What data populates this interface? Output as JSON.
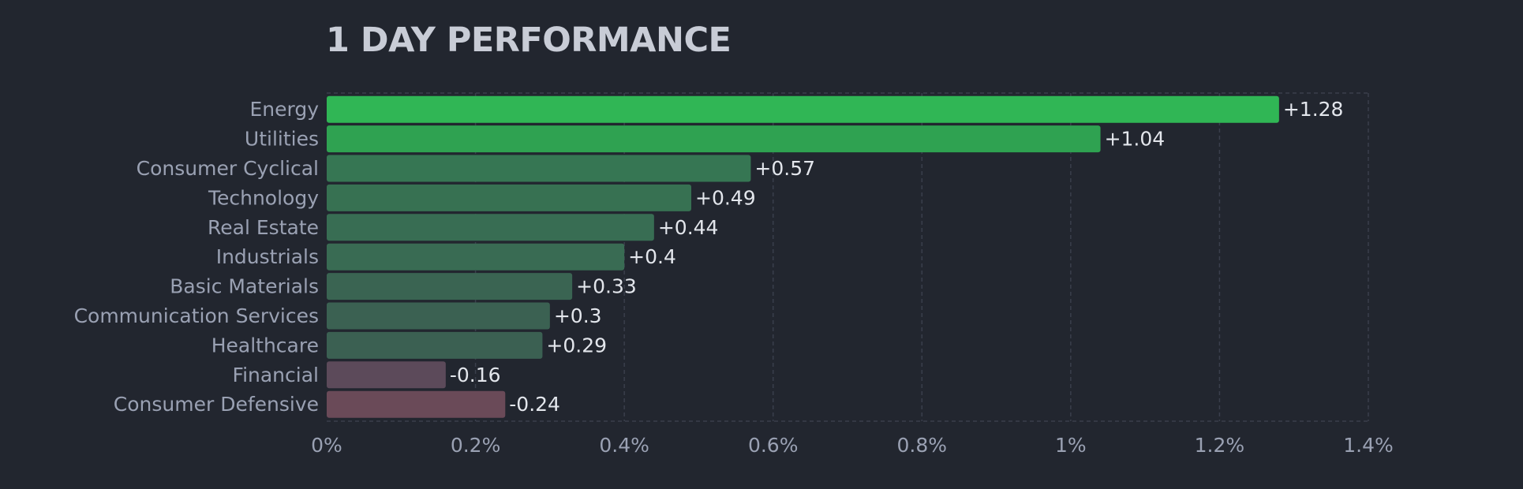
{
  "chart_data": {
    "type": "bar",
    "orientation": "horizontal",
    "title": "1 DAY PERFORMANCE",
    "categories": [
      "Energy",
      "Utilities",
      "Consumer Cyclical",
      "Technology",
      "Real Estate",
      "Industrials",
      "Basic Materials",
      "Communication Services",
      "Healthcare",
      "Financial",
      "Consumer Defensive"
    ],
    "values": [
      1.28,
      1.04,
      0.57,
      0.49,
      0.44,
      0.4,
      0.33,
      0.3,
      0.29,
      -0.16,
      -0.24
    ],
    "value_labels": [
      "+1.28",
      "+1.04",
      "+0.57",
      "+0.49",
      "+0.44",
      "+0.4",
      "+0.33",
      "+0.3",
      "+0.29",
      "-0.16",
      "-0.24"
    ],
    "bar_colors": [
      "#30b655",
      "#2fa251",
      "#367653",
      "#377152",
      "#386d53",
      "#396b53",
      "#3a6452",
      "#3b6152",
      "#3b6052",
      "#5c4a5a",
      "#6a4a58"
    ],
    "xticks": [
      "0%",
      "0.2%",
      "0.4%",
      "0.6%",
      "0.8%",
      "1%",
      "1.2%",
      "1.4%"
    ],
    "xlim": [
      0,
      1.4
    ],
    "xlabel": "",
    "ylabel": "",
    "grid": true,
    "bar_length": "absolute value",
    "colors": {
      "background": "#22262f",
      "grid": "#3a3f4c",
      "title": "#c8ccd6",
      "category_text": "#9aa1b3",
      "value_text": "#e3e6ec",
      "tick_text": "#9aa1b3"
    }
  }
}
